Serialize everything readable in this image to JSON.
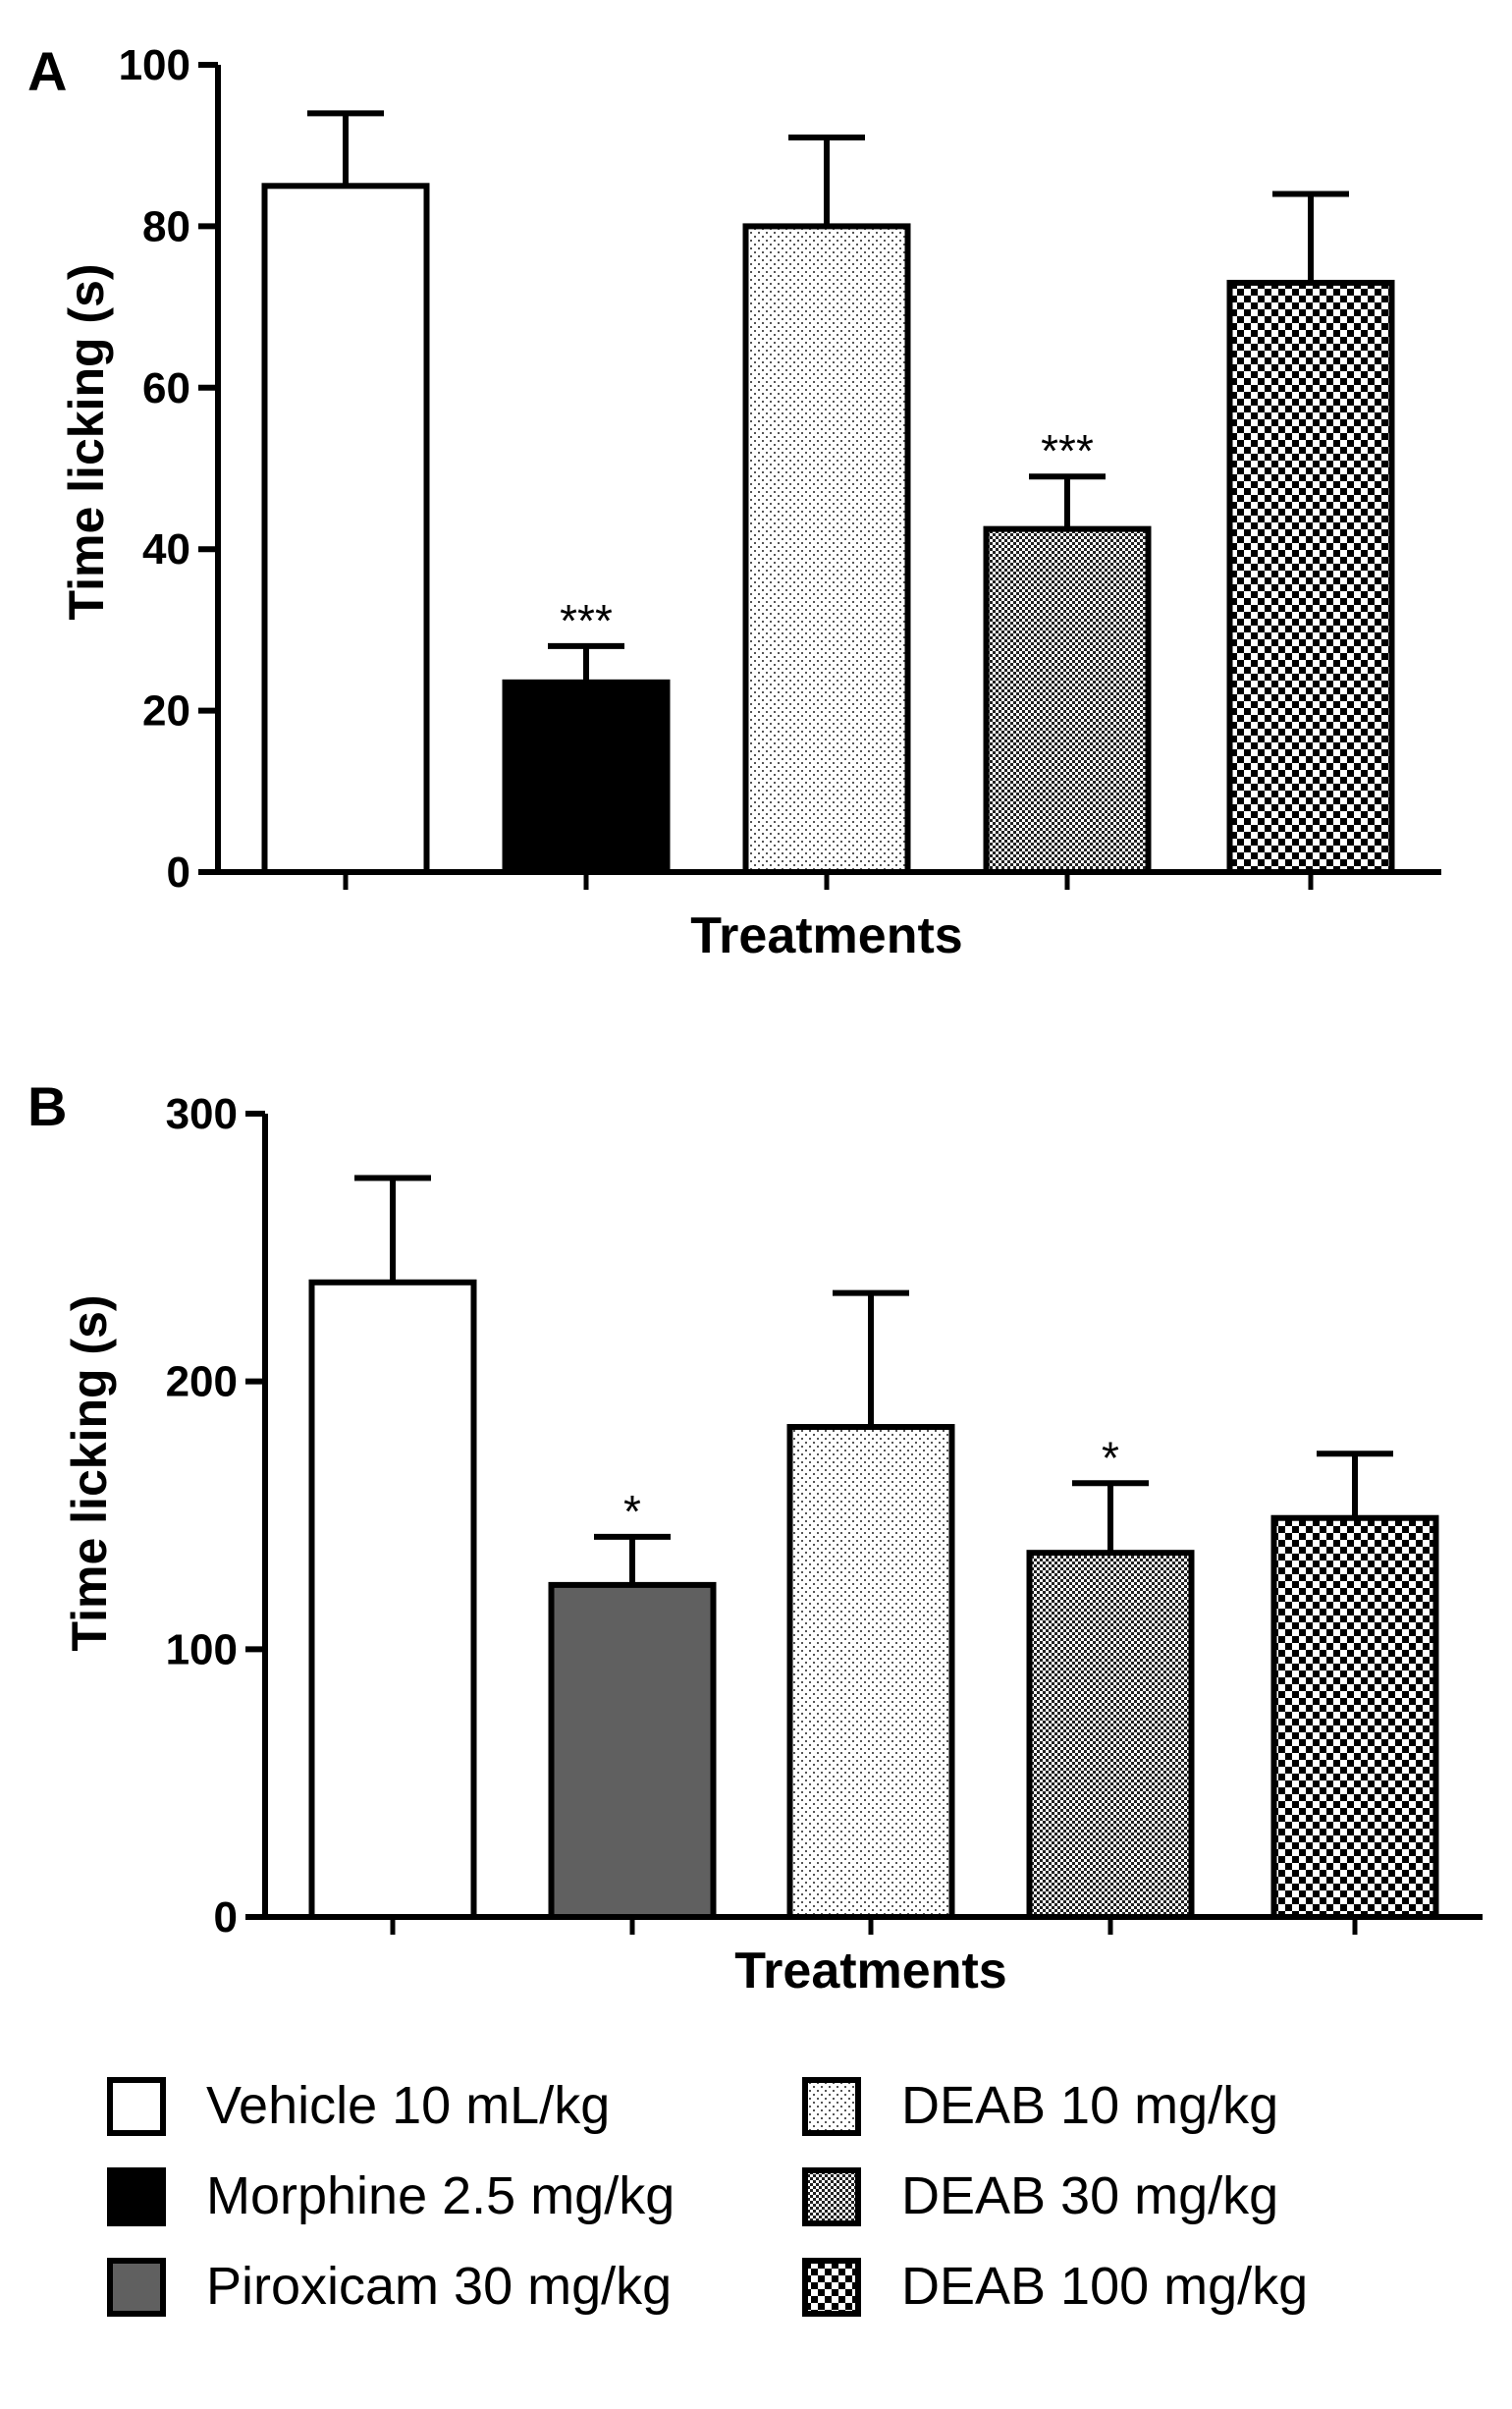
{
  "chart_data": [
    {
      "panel_label": "A",
      "type": "bar",
      "title": "",
      "xlabel": "Treatments",
      "ylabel": "Time licking (s)",
      "ylim": [
        0,
        100
      ],
      "yticks": [
        0,
        20,
        40,
        60,
        80,
        100
      ],
      "grid": false,
      "categories": [
        "Vehicle 10 mL/kg",
        "Morphine 2.5 mg/kg",
        "DEAB 10 mg/kg",
        "DEAB 30 mg/kg",
        "DEAB 100 mg/kg"
      ],
      "fills": [
        "white",
        "black",
        "dots-light",
        "dots-dense",
        "checker"
      ],
      "values": [
        85,
        23.5,
        80,
        42.5,
        73
      ],
      "errors": [
        9,
        4.5,
        11,
        6.5,
        11
      ],
      "annotations": [
        "",
        "***",
        "",
        "***",
        ""
      ]
    },
    {
      "panel_label": "B",
      "type": "bar",
      "title": "",
      "xlabel": "Treatments",
      "ylabel": "Time licking (s)",
      "ylim": [
        0,
        300
      ],
      "yticks": [
        0,
        100,
        200,
        300
      ],
      "grid": false,
      "categories": [
        "Vehicle 10 mL/kg",
        "Piroxicam 30 mg/kg",
        "DEAB 10 mg/kg",
        "DEAB 30 mg/kg",
        "DEAB 100 mg/kg"
      ],
      "fills": [
        "white",
        "gray",
        "dots-light",
        "dots-dense",
        "checker"
      ],
      "values": [
        237,
        124,
        183,
        136,
        149
      ],
      "errors": [
        39,
        18,
        50,
        26,
        24
      ],
      "annotations": [
        "",
        "*",
        "",
        "*",
        ""
      ]
    }
  ],
  "legend": {
    "placement": "bottom",
    "items": [
      {
        "label": "Vehicle 10 mL/kg",
        "fill": "white"
      },
      {
        "label": "DEAB 10 mg/kg",
        "fill": "dots-light"
      },
      {
        "label": "Morphine 2.5 mg/kg",
        "fill": "black"
      },
      {
        "label": "DEAB 30 mg/kg",
        "fill": "dots-dense"
      },
      {
        "label": "Piroxicam 30 mg/kg",
        "fill": "gray"
      },
      {
        "label": "DEAB 100 mg/kg",
        "fill": "checker"
      }
    ]
  },
  "colors": {
    "ink": "#000000",
    "background": "#ffffff",
    "gray_fill": "#606060"
  }
}
